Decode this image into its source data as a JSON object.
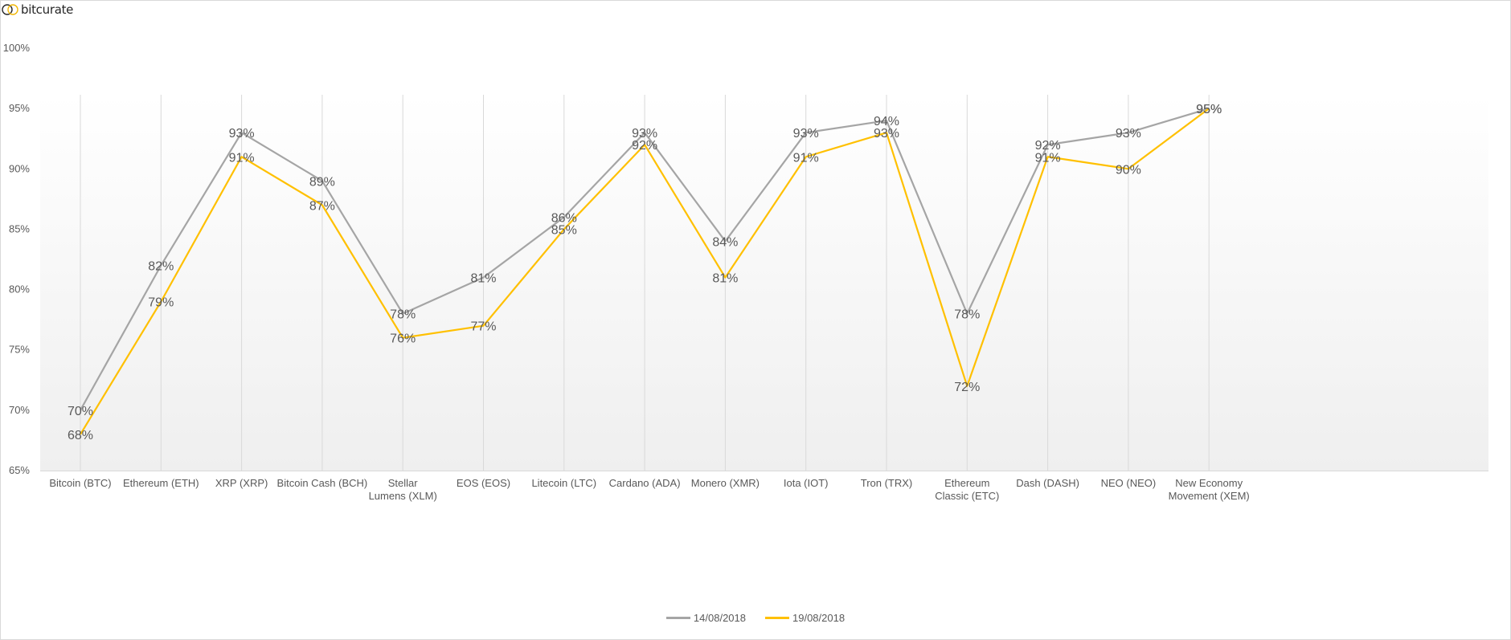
{
  "logo": {
    "text": "bitcurate"
  },
  "chart_data": {
    "type": "line",
    "title": "",
    "xlabel": "",
    "ylabel": "",
    "ylim": [
      65,
      100
    ],
    "yticks": [
      65,
      70,
      75,
      80,
      85,
      90,
      95,
      100
    ],
    "ytick_suffix": "%",
    "grid": "vertical lines at categories",
    "legend": "bottom-center",
    "categories": [
      "Bitcoin (BTC)",
      "Ethereum (ETH)",
      "XRP (XRP)",
      "Bitcoin Cash (BCH)",
      "Stellar Lumens (XLM)",
      "EOS (EOS)",
      "Litecoin (LTC)",
      "Cardano (ADA)",
      "Monero (XMR)",
      "Iota (IOT)",
      "Tron (TRX)",
      "Ethereum Classic (ETC)",
      "Dash (DASH)",
      "NEO (NEO)",
      "New Economy Movement (XEM)"
    ],
    "category_lines": [
      [
        "Bitcoin (BTC)"
      ],
      [
        "Ethereum (ETH)"
      ],
      [
        "XRP  (XRP)"
      ],
      [
        "Bitcoin Cash (BCH)"
      ],
      [
        "Stellar",
        "Lumens (XLM)"
      ],
      [
        "EOS (EOS)"
      ],
      [
        "Litecoin (LTC)"
      ],
      [
        "Cardano (ADA)"
      ],
      [
        "Monero (XMR)"
      ],
      [
        "Iota (IOT)"
      ],
      [
        "Tron (TRX)"
      ],
      [
        "Ethereum",
        "Classic (ETC)"
      ],
      [
        "Dash (DASH)"
      ],
      [
        "NEO (NEO)"
      ],
      [
        "New Economy",
        "Movement (XEM)"
      ]
    ],
    "series": [
      {
        "name": "14/08/2018",
        "color": "#a5a5a5",
        "values": [
          70,
          82,
          93,
          89,
          78,
          81,
          86,
          93,
          84,
          93,
          94,
          78,
          92,
          93,
          95
        ]
      },
      {
        "name": "19/08/2018",
        "color": "#ffc000",
        "values": [
          68,
          79,
          91,
          87,
          76,
          77,
          85,
          92,
          81,
          91,
          93,
          72,
          91,
          90,
          95
        ]
      }
    ]
  }
}
